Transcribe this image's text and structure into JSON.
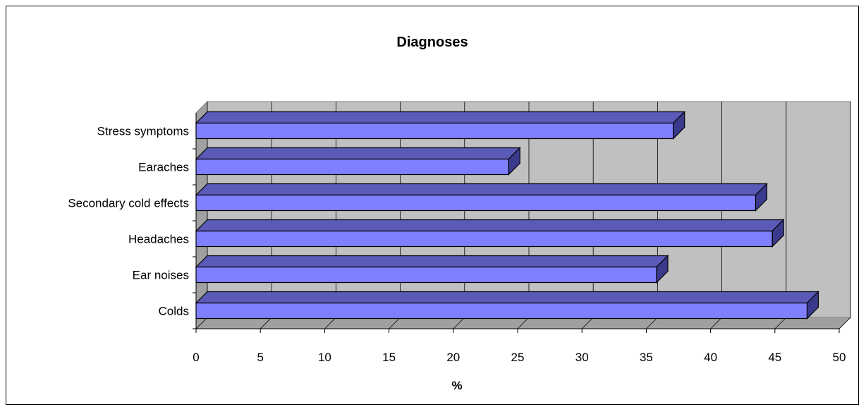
{
  "chart_data": {
    "type": "bar",
    "orientation": "horizontal",
    "title": "Diagnoses",
    "xlabel": "%",
    "ylabel": "",
    "categories": [
      "Colds",
      "Ear noises",
      "Headaches",
      "Secondary cold effects",
      "Earaches",
      "Stress symptoms"
    ],
    "values": [
      47.5,
      35.8,
      44.8,
      43.5,
      24.3,
      37.1
    ],
    "xlim": [
      0,
      50
    ],
    "x_ticks": [
      "0",
      "5",
      "10",
      "15",
      "20",
      "25",
      "30",
      "35",
      "40",
      "45",
      "50"
    ],
    "grid": true,
    "legend": "none",
    "three_d": true,
    "colors": {
      "bar_front": "#8080ff",
      "bar_top": "#5a5ab8",
      "bar_side": "#3a3a8c",
      "plot_wall": "#c0c0c0",
      "plot_floor": "#a0a0a0",
      "gridline": "#000000"
    }
  }
}
